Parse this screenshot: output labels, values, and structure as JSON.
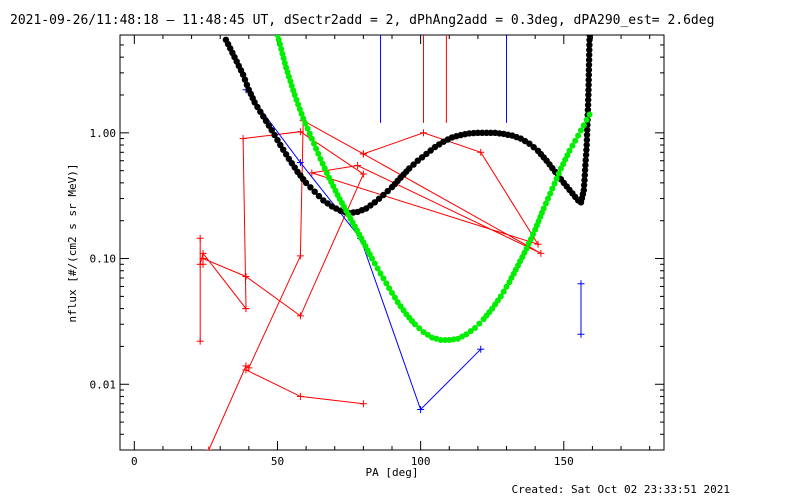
{
  "chart_data": {
    "type": "scatter",
    "title": "2021-09-26/11:48:18 – 11:48:45 UT, dSectr2add = 2, dPhAng2add = 0.3deg, dPA290_est=  2.6deg",
    "xlabel": "PA [deg]",
    "ylabel": "nflux [#/(cm2 s sr MeV)]",
    "xlim": [
      -5,
      185
    ],
    "ylim": [
      0.003,
      6
    ],
    "yscale": "log",
    "x_ticks": [
      0,
      50,
      100,
      150
    ],
    "y_ticks": [
      0.01,
      0.1,
      1.0
    ],
    "y_tick_labels": [
      "0.01",
      "0.10",
      "1.00"
    ],
    "footer": "Created: Sat Oct 02 23:33:51 2021",
    "colors": {
      "red": "#ff0000",
      "blue": "#0000ff",
      "black": "#000000",
      "green": "#00ee00"
    },
    "series": [
      {
        "color": "#ff0000",
        "kind": "polyline",
        "points": [
          [
            23,
            0.022
          ],
          [
            23,
            0.145
          ],
          [
            23,
            0.09
          ],
          [
            24,
            0.11
          ],
          [
            39,
            0.04
          ],
          [
            39,
            0.04
          ],
          [
            38,
            0.9
          ],
          [
            58,
            1.02
          ],
          [
            80,
            0.47
          ],
          [
            58,
            0.035
          ],
          [
            39,
            0.072
          ],
          [
            24,
            0.1
          ],
          [
            24,
            0.09
          ]
        ]
      },
      {
        "color": "#ff0000",
        "kind": "polyline",
        "points": [
          [
            26,
            0.003
          ],
          [
            39,
            0.014
          ],
          [
            40,
            0.0135
          ],
          [
            58,
            0.105
          ],
          [
            59,
            1.25
          ],
          [
            80,
            0.68
          ],
          [
            101,
            1.0
          ],
          [
            121,
            0.7
          ],
          [
            141,
            0.13
          ],
          [
            62,
            0.48
          ],
          [
            78,
            0.55
          ],
          [
            142,
            0.11
          ],
          [
            80,
            0.68
          ]
        ]
      },
      {
        "color": "#ff0000",
        "kind": "polyline",
        "points": [
          [
            39,
            0.013
          ],
          [
            58,
            0.008
          ],
          [
            80,
            0.007
          ]
        ]
      },
      {
        "color": "#0000ff",
        "kind": "polyline",
        "points": [
          [
            39,
            2.2
          ],
          [
            58,
            0.58
          ],
          [
            79,
            0.145
          ],
          [
            100,
            0.0063
          ],
          [
            121,
            0.019
          ]
        ]
      },
      {
        "color": "#0000ff",
        "kind": "polyline",
        "points": [
          [
            156,
            0.025
          ],
          [
            156,
            0.063
          ]
        ]
      },
      {
        "color": "#000000",
        "kind": "dots",
        "size": 3.2,
        "points": [
          [
            32,
            5.5
          ],
          [
            35,
            4.0
          ],
          [
            38,
            2.9
          ],
          [
            40,
            2.2
          ],
          [
            42,
            1.75
          ],
          [
            45,
            1.35
          ],
          [
            48,
            1.05
          ],
          [
            51,
            0.8
          ],
          [
            54,
            0.62
          ],
          [
            57,
            0.49
          ],
          [
            60,
            0.4
          ],
          [
            63,
            0.34
          ],
          [
            66,
            0.29
          ],
          [
            69,
            0.26
          ],
          [
            72,
            0.24
          ],
          [
            75,
            0.23
          ],
          [
            78,
            0.235
          ],
          [
            81,
            0.25
          ],
          [
            84,
            0.28
          ],
          [
            87,
            0.32
          ],
          [
            90,
            0.37
          ],
          [
            93,
            0.44
          ],
          [
            96,
            0.52
          ],
          [
            99,
            0.6
          ],
          [
            102,
            0.68
          ],
          [
            105,
            0.77
          ],
          [
            108,
            0.85
          ],
          [
            111,
            0.92
          ],
          [
            114,
            0.96
          ],
          [
            117,
            0.99
          ],
          [
            120,
            1.0
          ],
          [
            123,
            1.0
          ],
          [
            126,
            1.0
          ],
          [
            129,
            0.98
          ],
          [
            132,
            0.95
          ],
          [
            135,
            0.9
          ],
          [
            138,
            0.82
          ],
          [
            141,
            0.72
          ],
          [
            144,
            0.6
          ],
          [
            147,
            0.49
          ],
          [
            150,
            0.4
          ],
          [
            153,
            0.33
          ],
          [
            155,
            0.29
          ],
          [
            156,
            0.28
          ],
          [
            157,
            0.35
          ],
          [
            158,
            0.8
          ],
          [
            158.6,
            2.0
          ],
          [
            159,
            6.0
          ]
        ]
      },
      {
        "color": "#00ee00",
        "kind": "dots",
        "size": 3.0,
        "points": [
          [
            50,
            6.0
          ],
          [
            53,
            3.3
          ],
          [
            56,
            2.0
          ],
          [
            59,
            1.3
          ],
          [
            62,
            0.9
          ],
          [
            65,
            0.62
          ],
          [
            68,
            0.44
          ],
          [
            71,
            0.32
          ],
          [
            74,
            0.24
          ],
          [
            77,
            0.18
          ],
          [
            80,
            0.135
          ],
          [
            83,
            0.1
          ],
          [
            86,
            0.076
          ],
          [
            89,
            0.058
          ],
          [
            92,
            0.045
          ],
          [
            95,
            0.036
          ],
          [
            98,
            0.03
          ],
          [
            101,
            0.026
          ],
          [
            104,
            0.0235
          ],
          [
            107,
            0.0225
          ],
          [
            110,
            0.0225
          ],
          [
            113,
            0.023
          ],
          [
            116,
            0.025
          ],
          [
            119,
            0.028
          ],
          [
            122,
            0.033
          ],
          [
            125,
            0.04
          ],
          [
            128,
            0.05
          ],
          [
            131,
            0.065
          ],
          [
            134,
            0.088
          ],
          [
            137,
            0.12
          ],
          [
            140,
            0.17
          ],
          [
            143,
            0.25
          ],
          [
            146,
            0.36
          ],
          [
            149,
            0.52
          ],
          [
            152,
            0.72
          ],
          [
            155,
            0.95
          ],
          [
            157,
            1.15
          ],
          [
            159,
            1.4
          ]
        ]
      }
    ],
    "vertical_bars": [
      {
        "x": 86,
        "y_from": 1.2,
        "y_to": 6,
        "color": "#0000ff"
      },
      {
        "x": 101,
        "y_from": 1.2,
        "y_to": 6,
        "color": "#ff0000"
      },
      {
        "x": 109,
        "y_from": 1.2,
        "y_to": 6,
        "color": "#ff0000"
      },
      {
        "x": 130,
        "y_from": 1.2,
        "y_to": 6,
        "color": "#0000ff"
      }
    ]
  }
}
